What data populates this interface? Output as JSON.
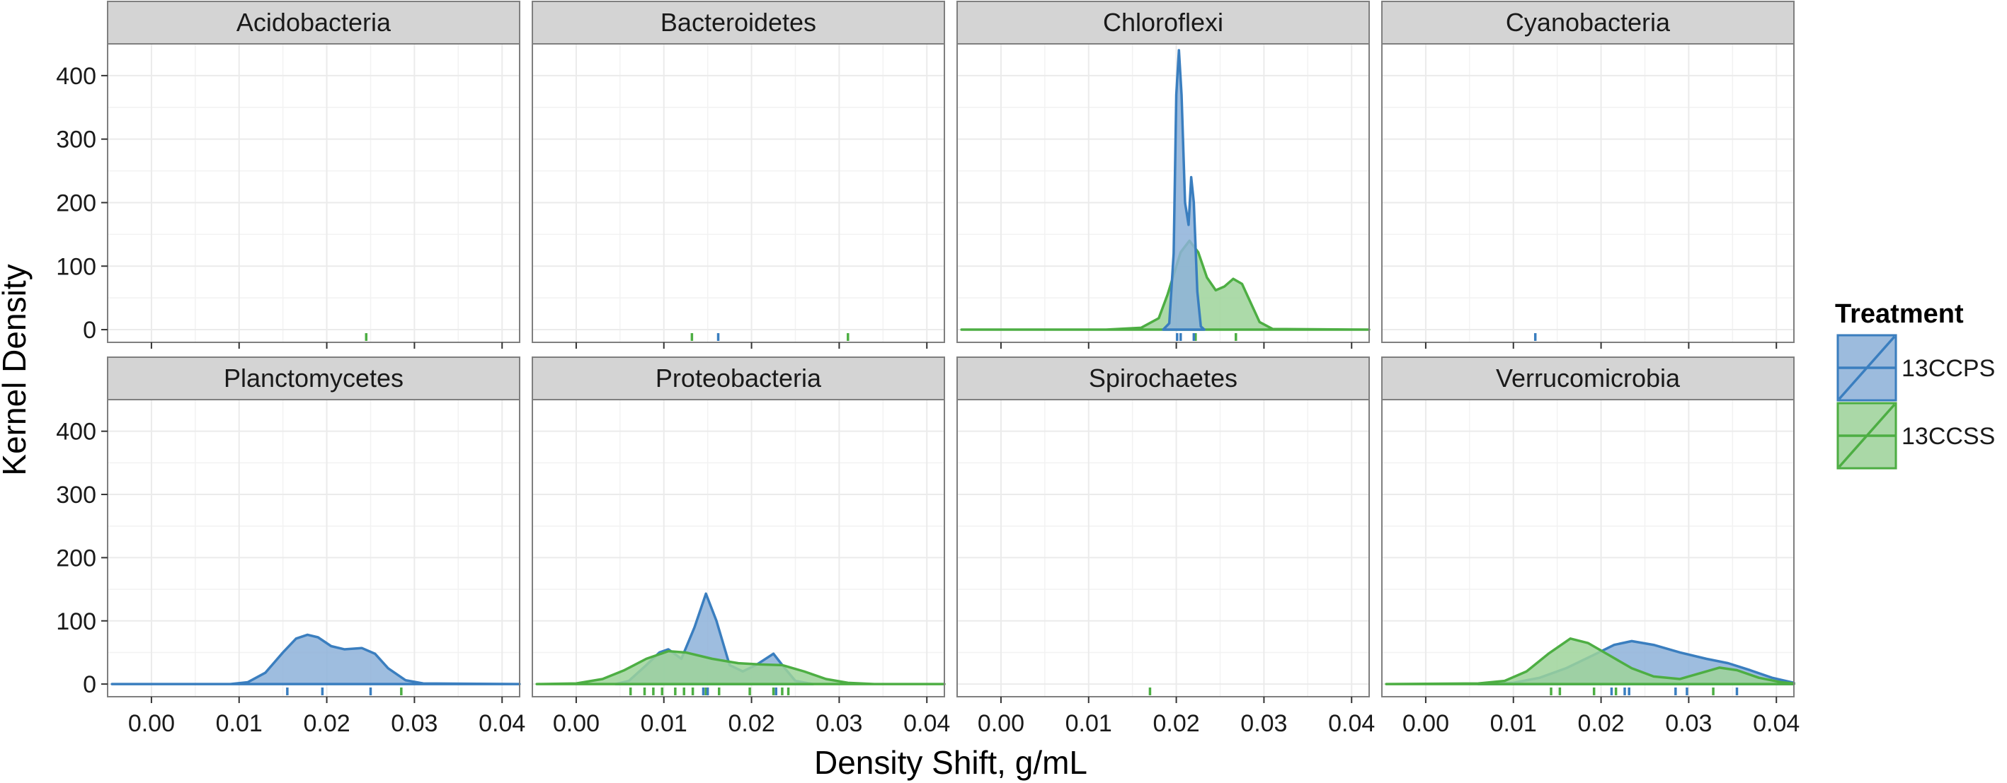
{
  "chart_data": {
    "type": "area",
    "xlabel": "Density Shift, g/mL",
    "ylabel": "Kernel Density",
    "xlim": [
      -0.005,
      0.042
    ],
    "ylim": [
      -20,
      450
    ],
    "x_ticks": [
      "0.00",
      "0.01",
      "0.02",
      "0.03",
      "0.04"
    ],
    "x_tick_values": [
      0,
      0.01,
      0.02,
      0.03,
      0.04
    ],
    "y_ticks": [
      "0",
      "100",
      "200",
      "300",
      "400"
    ],
    "y_tick_values": [
      0,
      100,
      200,
      300,
      400
    ],
    "grid": true,
    "legend": {
      "title": "Treatment",
      "placement": "right",
      "entries": [
        {
          "label": "13CCPS",
          "color": "#3A7EBF",
          "fill": "#8DB2D9"
        },
        {
          "label": "13CCSS",
          "color": "#4DAE43",
          "fill": "#9ED39A"
        }
      ]
    },
    "colors": {
      "13CCPS_line": "#3A7EBF",
      "13CCPS_fill": "#8DB2D9",
      "13CCSS_line": "#4DAE43",
      "13CCSS_fill": "#9ED39A",
      "strip": "#D4D4D4",
      "grid": "#EBEBEB",
      "border": "#7F7F7F"
    },
    "panels": [
      {
        "name": "Acidobacteria",
        "rugs": {
          "13CCPS": [],
          "13CCSS": [
            0.0245
          ]
        },
        "densities": []
      },
      {
        "name": "Bacteroidetes",
        "rugs": {
          "13CCPS": [
            0.0162
          ],
          "13CCSS": [
            0.0132,
            0.031
          ]
        },
        "densities": []
      },
      {
        "name": "Chloroflexi",
        "rugs": {
          "13CCPS": [
            0.0201,
            0.0205,
            0.022
          ],
          "13CCSS": [
            0.0222,
            0.0268
          ]
        },
        "densities": [
          {
            "series": "13CCSS",
            "points": [
              [
                -0.0045,
                0
              ],
              [
                0.012,
                0
              ],
              [
                0.016,
                3
              ],
              [
                0.018,
                18
              ],
              [
                0.019,
                55
              ],
              [
                0.0205,
                122
              ],
              [
                0.0215,
                140
              ],
              [
                0.0225,
                122
              ],
              [
                0.0235,
                82
              ],
              [
                0.0245,
                62
              ],
              [
                0.0255,
                68
              ],
              [
                0.0265,
                80
              ],
              [
                0.0275,
                72
              ],
              [
                0.0285,
                42
              ],
              [
                0.0295,
                12
              ],
              [
                0.031,
                1
              ],
              [
                0.042,
                0
              ]
            ]
          },
          {
            "series": "13CCPS",
            "points": [
              [
                0.0185,
                0
              ],
              [
                0.0192,
                10
              ],
              [
                0.0197,
                120
              ],
              [
                0.02,
                370
              ],
              [
                0.0203,
                440
              ],
              [
                0.0206,
                370
              ],
              [
                0.021,
                200
              ],
              [
                0.0214,
                165
              ],
              [
                0.0217,
                240
              ],
              [
                0.022,
                200
              ],
              [
                0.0224,
                60
              ],
              [
                0.0228,
                5
              ],
              [
                0.0232,
                0
              ]
            ]
          }
        ]
      },
      {
        "name": "Cyanobacteria",
        "rugs": {
          "13CCPS": [
            0.0125
          ],
          "13CCSS": []
        },
        "densities": []
      },
      {
        "name": "Planctomycetes",
        "rugs": {
          "13CCPS": [
            0.0155,
            0.0195,
            0.025
          ],
          "13CCSS": [
            0.0285
          ]
        },
        "densities": [
          {
            "series": "13CCPS",
            "points": [
              [
                -0.0045,
                0
              ],
              [
                0.009,
                0
              ],
              [
                0.011,
                3
              ],
              [
                0.013,
                18
              ],
              [
                0.015,
                50
              ],
              [
                0.0165,
                72
              ],
              [
                0.0178,
                78
              ],
              [
                0.019,
                74
              ],
              [
                0.0205,
                60
              ],
              [
                0.022,
                55
              ],
              [
                0.024,
                57
              ],
              [
                0.0255,
                48
              ],
              [
                0.027,
                25
              ],
              [
                0.029,
                6
              ],
              [
                0.031,
                1
              ],
              [
                0.042,
                0
              ]
            ]
          }
        ]
      },
      {
        "name": "Proteobacteria",
        "rugs": {
          "13CCPS": [
            0.0145,
            0.015,
            0.0228
          ],
          "13CCSS": [
            0.0062,
            0.0078,
            0.0088,
            0.0098,
            0.0113,
            0.0123,
            0.0133,
            0.0148,
            0.0163,
            0.0198,
            0.0225,
            0.0235,
            0.0242
          ]
        },
        "densities": [
          {
            "series": "13CCPS",
            "points": [
              [
                0.0045,
                0
              ],
              [
                0.006,
                5
              ],
              [
                0.008,
                30
              ],
              [
                0.0095,
                50
              ],
              [
                0.0105,
                55
              ],
              [
                0.012,
                40
              ],
              [
                0.0135,
                90
              ],
              [
                0.0148,
                143
              ],
              [
                0.016,
                100
              ],
              [
                0.0175,
                30
              ],
              [
                0.019,
                20
              ],
              [
                0.0205,
                30
              ],
              [
                0.0225,
                48
              ],
              [
                0.0238,
                25
              ],
              [
                0.025,
                5
              ],
              [
                0.027,
                0
              ]
            ]
          },
          {
            "series": "13CCSS",
            "points": [
              [
                -0.0045,
                0
              ],
              [
                0.0,
                1
              ],
              [
                0.003,
                8
              ],
              [
                0.0055,
                22
              ],
              [
                0.008,
                40
              ],
              [
                0.0105,
                52
              ],
              [
                0.0125,
                50
              ],
              [
                0.0155,
                40
              ],
              [
                0.0185,
                33
              ],
              [
                0.021,
                31
              ],
              [
                0.0235,
                30
              ],
              [
                0.026,
                20
              ],
              [
                0.0285,
                8
              ],
              [
                0.031,
                2
              ],
              [
                0.034,
                0
              ],
              [
                0.042,
                0
              ]
            ]
          }
        ]
      },
      {
        "name": "Spirochaetes",
        "rugs": {
          "13CCPS": [],
          "13CCSS": [
            0.017
          ]
        },
        "densities": []
      },
      {
        "name": "Verrucomicrobia",
        "rugs": {
          "13CCPS": [
            0.0212,
            0.0227,
            0.0232,
            0.0285,
            0.0298,
            0.0355
          ],
          "13CCSS": [
            0.0143,
            0.0153,
            0.0192,
            0.0217,
            0.0328
          ]
        },
        "densities": [
          {
            "series": "13CCPS",
            "points": [
              [
                0.006,
                0
              ],
              [
                0.01,
                2
              ],
              [
                0.013,
                10
              ],
              [
                0.016,
                25
              ],
              [
                0.019,
                45
              ],
              [
                0.0215,
                62
              ],
              [
                0.0235,
                68
              ],
              [
                0.026,
                62
              ],
              [
                0.029,
                50
              ],
              [
                0.032,
                40
              ],
              [
                0.0345,
                33
              ],
              [
                0.037,
                22
              ],
              [
                0.0395,
                10
              ],
              [
                0.042,
                2
              ]
            ]
          },
          {
            "series": "13CCSS",
            "points": [
              [
                -0.0045,
                0
              ],
              [
                0.006,
                1
              ],
              [
                0.009,
                5
              ],
              [
                0.0115,
                20
              ],
              [
                0.014,
                48
              ],
              [
                0.0165,
                72
              ],
              [
                0.0185,
                65
              ],
              [
                0.021,
                45
              ],
              [
                0.0235,
                25
              ],
              [
                0.026,
                12
              ],
              [
                0.029,
                8
              ],
              [
                0.0315,
                18
              ],
              [
                0.0335,
                26
              ],
              [
                0.0355,
                22
              ],
              [
                0.038,
                10
              ],
              [
                0.0405,
                3
              ],
              [
                0.042,
                1
              ]
            ]
          }
        ]
      }
    ]
  }
}
